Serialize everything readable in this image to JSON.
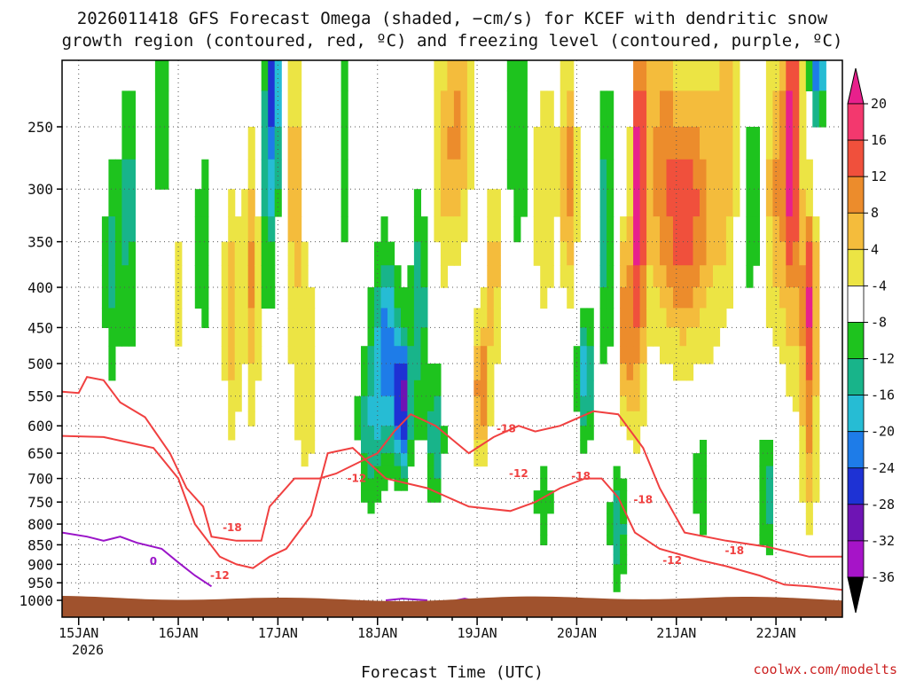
{
  "chart_data": {
    "type": "heatmap",
    "title_line1": "2026011418 GFS Forecast Omega (shaded, −cm/s) for KCEF with dendritic snow",
    "title_line2": "growth region (contoured, red, ºC) and freezing level (contoured, purple, ºC)",
    "xlabel": "Forecast Time (UTC)",
    "ylabel": "",
    "credit": "coolwx.com/modelts",
    "y_ticks": [
      250,
      300,
      350,
      400,
      450,
      500,
      550,
      600,
      650,
      700,
      750,
      800,
      850,
      900,
      950,
      1000
    ],
    "x_ticks": [
      "15JAN",
      "16JAN",
      "17JAN",
      "18JAN",
      "19JAN",
      "20JAN",
      "21JAN",
      "22JAN"
    ],
    "x_year": "2026",
    "x_range_hours": [
      -4,
      184
    ],
    "y_range_hpa": [
      200,
      1030
    ],
    "colorbar": {
      "levels": [
        20,
        16,
        12,
        8,
        4,
        -4,
        -8,
        -12,
        -16,
        -20,
        -24,
        -28,
        -32,
        -36
      ],
      "colors": [
        "#f3386e",
        "#f0503c",
        "#ec8c2c",
        "#f4bc3c",
        "#ece444",
        "#ffffff",
        "#1ec31e",
        "#18b48a",
        "#26bcd4",
        "#1e7ce8",
        "#1e32d4",
        "#6e14b4",
        "#a614c8",
        "#a0a0a0",
        "#000000"
      ],
      "top_arrow_color": "#e8208c",
      "bottom_arrow_color": "#000000"
    },
    "contour_labels": [
      {
        "text": "-18",
        "color": "red"
      },
      {
        "text": "-12",
        "color": "red"
      },
      {
        "text": "-18",
        "color": "red"
      },
      {
        "text": "-12",
        "color": "red"
      },
      {
        "text": "-18",
        "color": "red"
      },
      {
        "text": "-12",
        "color": "red"
      },
      {
        "text": "-18",
        "color": "red"
      },
      {
        "text": "-12",
        "color": "red"
      },
      {
        "text": "-18",
        "color": "red"
      },
      {
        "text": "0",
        "color": "purple"
      }
    ],
    "colors": {
      "dgz_contour": "#f04040",
      "freezing_contour": "#9a14c8",
      "terrain": "#a0522d",
      "grid": "#555555"
    }
  }
}
